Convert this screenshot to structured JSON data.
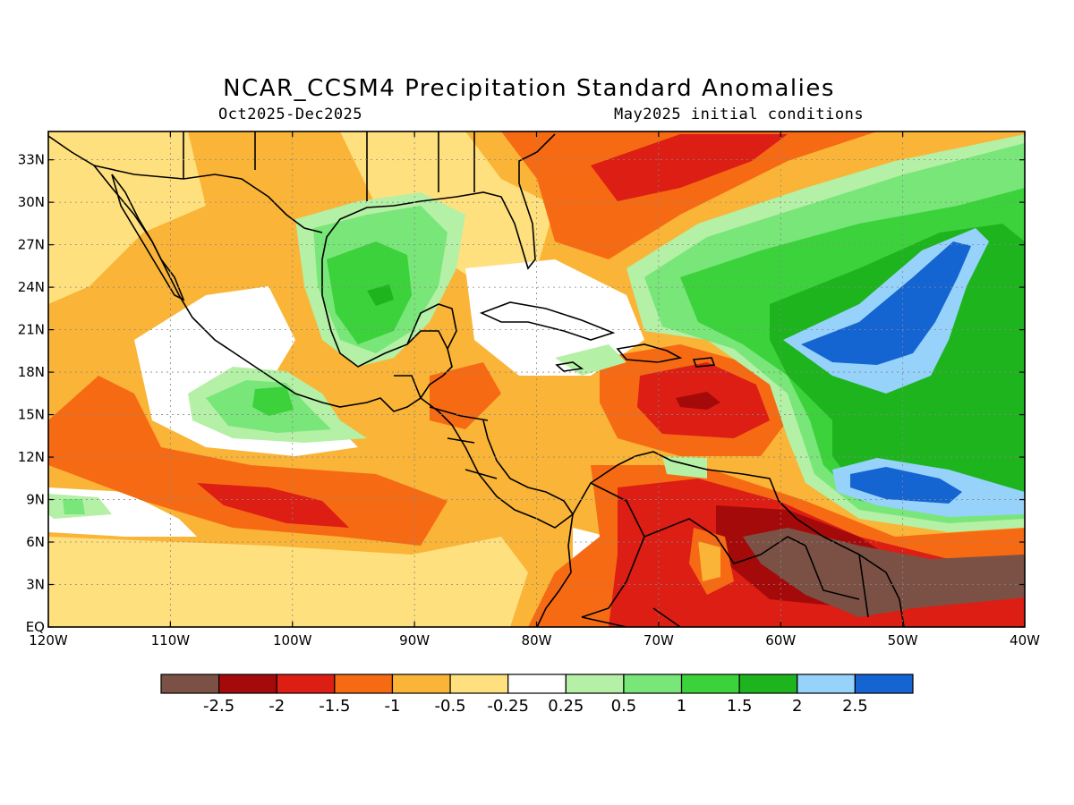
{
  "title": "NCAR_CCSM4 Precipitation Standard Anomalies",
  "subtitle_left": "Oct2025-Dec2025",
  "subtitle_right": "May2025 initial conditions",
  "lat_labels": [
    "33N",
    "30N",
    "27N",
    "24N",
    "21N",
    "18N",
    "15N",
    "12N",
    "9N",
    "6N",
    "3N",
    "EQ"
  ],
  "lon_labels": [
    "120W",
    "110W",
    "100W",
    "90W",
    "80W",
    "70W",
    "60W",
    "50W",
    "40W"
  ],
  "colorbar": {
    "colors": [
      "#7b5145",
      "#a50a0a",
      "#dc1e14",
      "#f66a14",
      "#fab437",
      "#ffe07e",
      "#ffffff",
      "#b4f0a5",
      "#78e678",
      "#3cd23c",
      "#1eb41e",
      "#96d2fa",
      "#1464d2"
    ],
    "labels": [
      "-2.5",
      "-2",
      "-1.5",
      "-1",
      "-0.5",
      "-0.25",
      "0.25",
      "0.5",
      "1",
      "1.5",
      "2",
      "2.5"
    ]
  }
}
